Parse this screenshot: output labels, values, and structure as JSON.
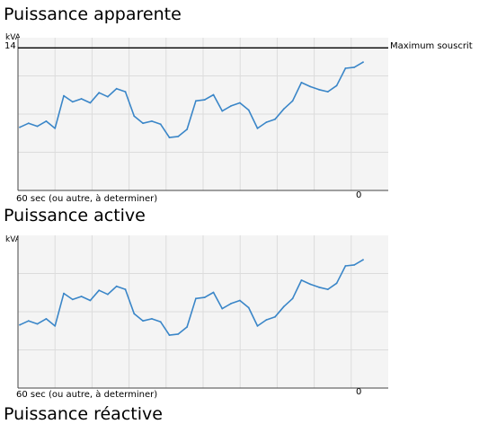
{
  "titles": {
    "chart1": "Puissance apparente",
    "chart2": "Puissance active",
    "chart3": "Puissance réactive"
  },
  "colors": {
    "series": "#3a86c8",
    "reference": "#000000",
    "grid": "#dcdcdc",
    "plot_bg": "#f4f4f4"
  },
  "chart_data": [
    {
      "type": "line",
      "title": "Puissance apparente",
      "ylabel": "kVA",
      "xlabel_left": "60 sec (ou autre, à determiner)",
      "xlabel_right": "0",
      "ytick_label": "14",
      "ylim": [
        0,
        15
      ],
      "grid": true,
      "reference_line": {
        "value": 14,
        "label": "Maximum souscrit"
      },
      "series": [
        {
          "values": [
            6.2,
            6.6,
            6.3,
            6.8,
            6.1,
            9.3,
            8.7,
            9.0,
            8.6,
            9.6,
            9.2,
            10.0,
            9.7,
            7.3,
            6.6,
            6.8,
            6.5,
            5.2,
            5.3,
            6.0,
            8.8,
            8.9,
            9.4,
            7.8,
            8.3,
            8.6,
            7.9,
            6.1,
            6.7,
            7.0,
            8.0,
            8.8,
            10.6,
            10.2,
            9.9,
            9.7,
            10.3,
            12.0,
            12.1,
            12.6
          ]
        }
      ]
    },
    {
      "type": "line",
      "title": "Puissance active",
      "ylabel": "kVA",
      "xlabel_left": "60 sec (ou autre, à determiner)",
      "xlabel_right": "0",
      "ylim": [
        0,
        15
      ],
      "grid": true,
      "series": [
        {
          "values": [
            6.2,
            6.6,
            6.3,
            6.8,
            6.1,
            9.3,
            8.7,
            9.0,
            8.6,
            9.6,
            9.2,
            10.0,
            9.7,
            7.3,
            6.6,
            6.8,
            6.5,
            5.2,
            5.3,
            6.0,
            8.8,
            8.9,
            9.4,
            7.8,
            8.3,
            8.6,
            7.9,
            6.1,
            6.7,
            7.0,
            8.0,
            8.8,
            10.6,
            10.2,
            9.9,
            9.7,
            10.3,
            12.0,
            12.1,
            12.6
          ]
        }
      ]
    }
  ]
}
